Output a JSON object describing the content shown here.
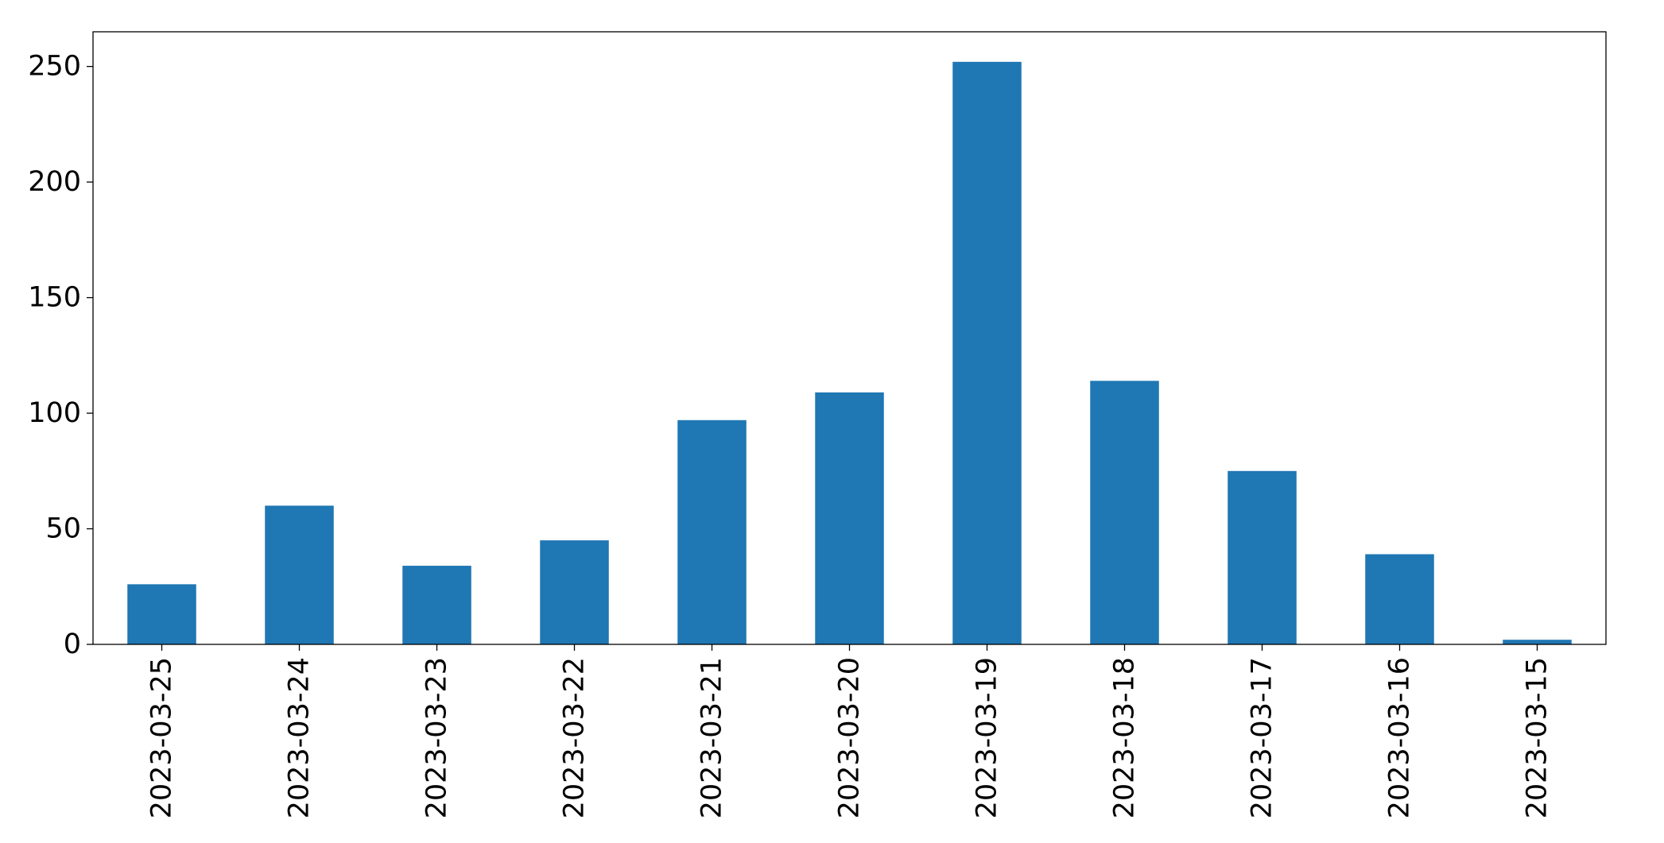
{
  "chart_data": {
    "type": "bar",
    "categories": [
      "2023-03-25",
      "2023-03-24",
      "2023-03-23",
      "2023-03-22",
      "2023-03-21",
      "2023-03-20",
      "2023-03-19",
      "2023-03-18",
      "2023-03-17",
      "2023-03-16",
      "2023-03-15"
    ],
    "values": [
      26,
      60,
      34,
      45,
      97,
      109,
      252,
      114,
      75,
      39,
      2
    ],
    "title": "",
    "xlabel": "",
    "ylabel": "",
    "ylim": [
      0,
      265
    ],
    "yticks": [
      0,
      50,
      100,
      150,
      200,
      250
    ],
    "grid": false,
    "legend": "none",
    "bar_color": "#1f77b4"
  }
}
